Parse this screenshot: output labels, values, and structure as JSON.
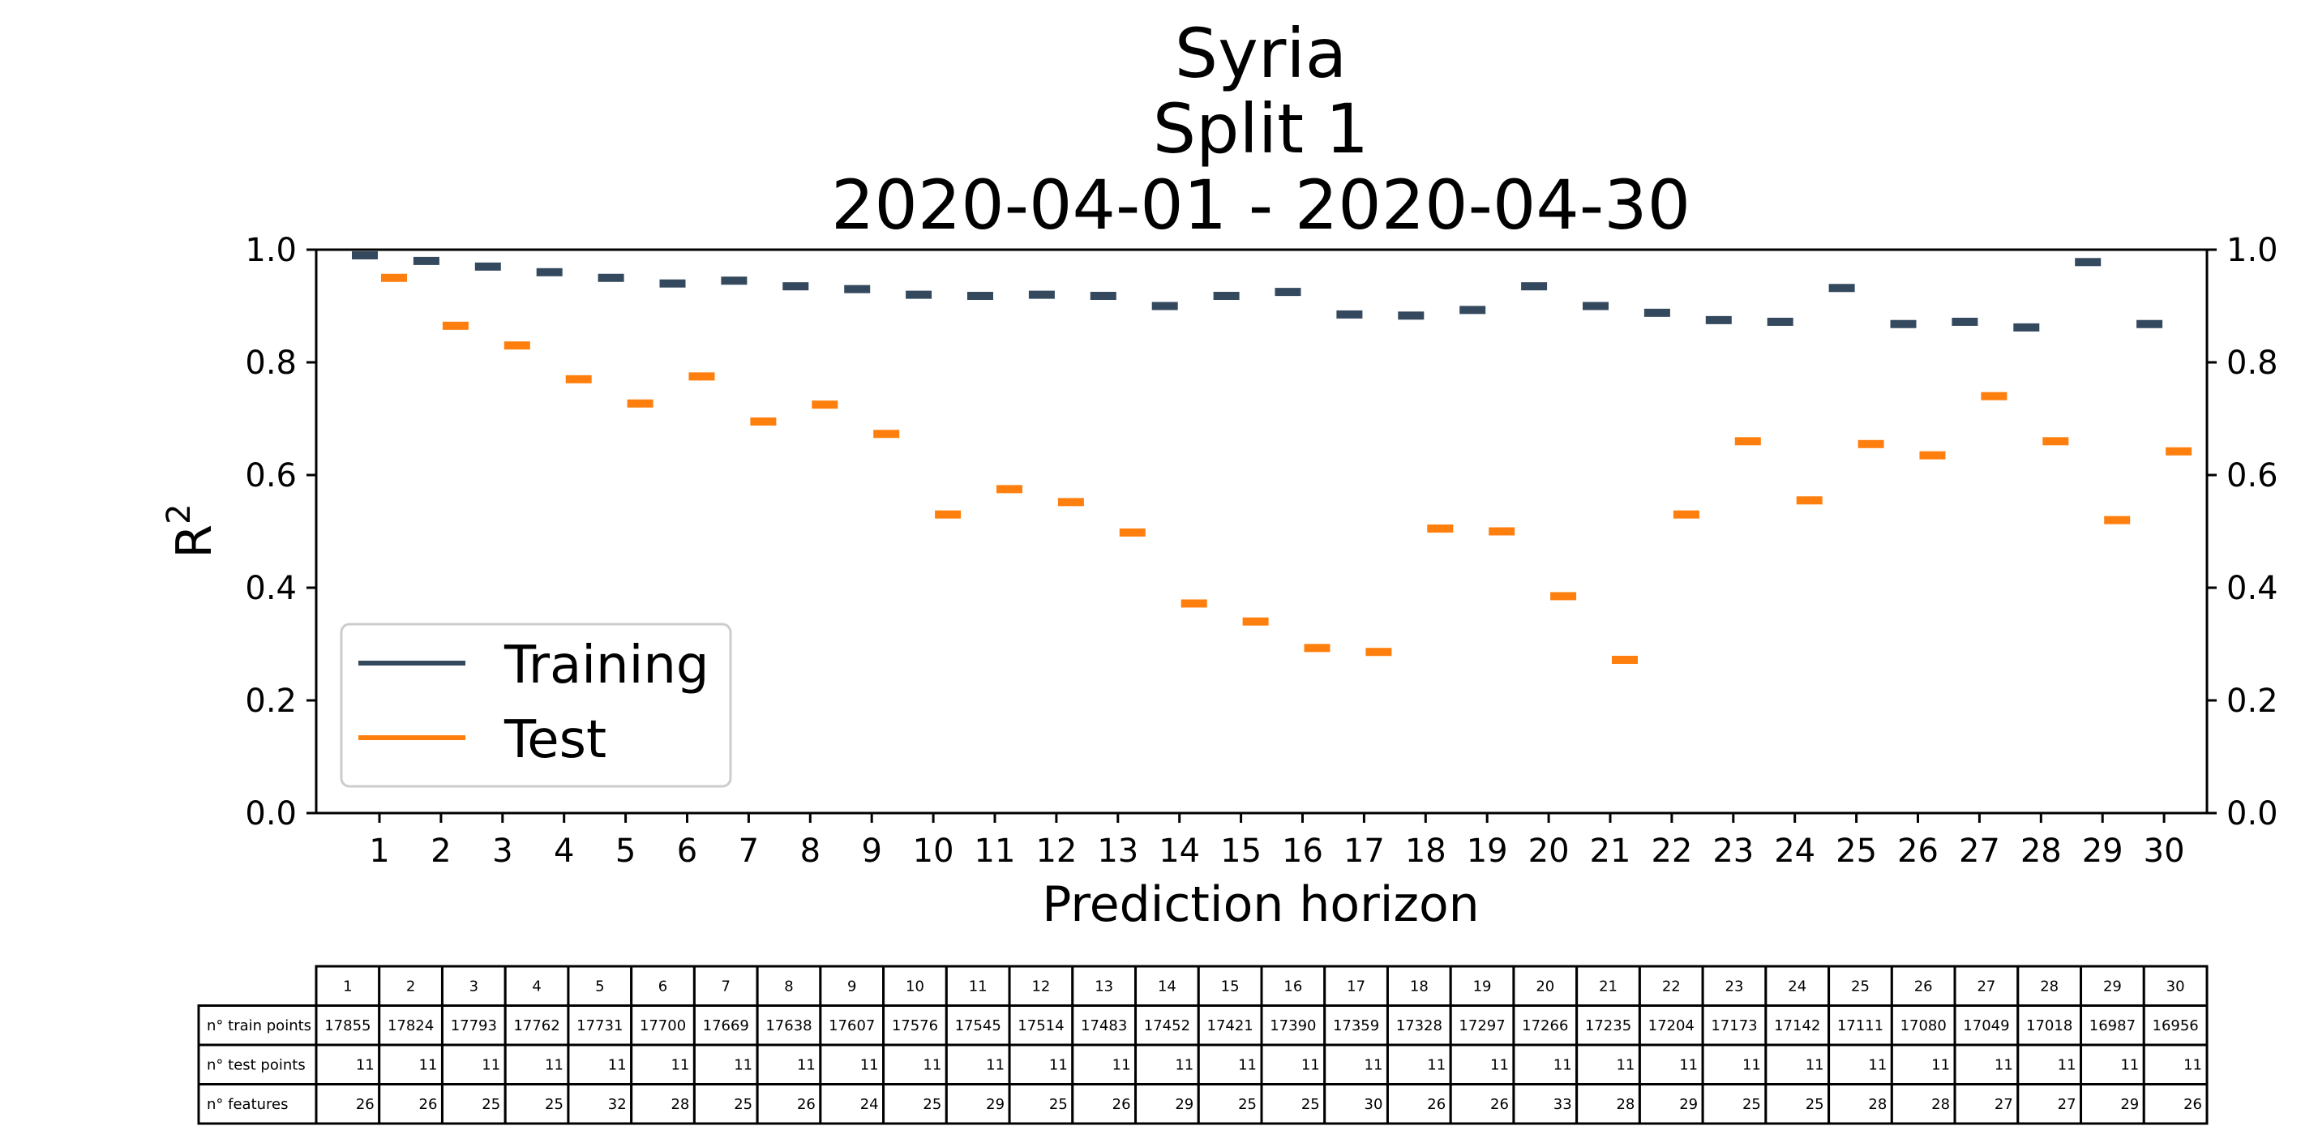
{
  "chart_data": {
    "type": "scatter",
    "title_lines": [
      "Syria",
      "Split 1",
      "2020-04-01 - 2020-04-30"
    ],
    "xlabel": "Prediction horizon",
    "ylabel": "R",
    "ylabel_sup": "2",
    "ylim": [
      0,
      1
    ],
    "yticks": [
      "0.0",
      "0.2",
      "0.4",
      "0.6",
      "0.8",
      "1.0"
    ],
    "x": [
      1,
      2,
      3,
      4,
      5,
      6,
      7,
      8,
      9,
      10,
      11,
      12,
      13,
      14,
      15,
      16,
      17,
      18,
      19,
      20,
      21,
      22,
      23,
      24,
      25,
      26,
      27,
      28,
      29,
      30
    ],
    "grid": false,
    "legend_position": "lower-left",
    "series": [
      {
        "name": "Training",
        "color": "#34495e",
        "values": [
          0.99,
          0.98,
          0.97,
          0.96,
          0.95,
          0.94,
          0.945,
          0.935,
          0.93,
          0.92,
          0.918,
          0.92,
          0.918,
          0.9,
          0.918,
          0.925,
          0.885,
          0.883,
          0.893,
          0.935,
          0.9,
          0.888,
          0.875,
          0.872,
          0.932,
          0.868,
          0.872,
          0.862,
          0.978,
          0.868
        ]
      },
      {
        "name": "Test",
        "color": "#ff7f0e",
        "values": [
          0.95,
          0.865,
          0.83,
          0.77,
          0.727,
          0.775,
          0.695,
          0.725,
          0.673,
          0.53,
          0.575,
          0.552,
          0.498,
          0.372,
          0.34,
          0.293,
          0.286,
          0.505,
          0.5,
          0.385,
          0.272,
          0.53,
          0.66,
          0.555,
          0.655,
          0.635,
          0.74,
          0.66,
          0.52,
          0.642
        ]
      }
    ],
    "table": {
      "header": [
        "1",
        "2",
        "3",
        "4",
        "5",
        "6",
        "7",
        "8",
        "9",
        "10",
        "11",
        "12",
        "13",
        "14",
        "15",
        "16",
        "17",
        "18",
        "19",
        "20",
        "21",
        "22",
        "23",
        "24",
        "25",
        "26",
        "27",
        "28",
        "29",
        "30"
      ],
      "rows": [
        {
          "label": "n° train points",
          "values": [
            "17855",
            "17824",
            "17793",
            "17762",
            "17731",
            "17700",
            "17669",
            "17638",
            "17607",
            "17576",
            "17545",
            "17514",
            "17483",
            "17452",
            "17421",
            "17390",
            "17359",
            "17328",
            "17297",
            "17266",
            "17235",
            "17204",
            "17173",
            "17142",
            "17111",
            "17080",
            "17049",
            "17018",
            "16987",
            "16956"
          ]
        },
        {
          "label": "n° test points",
          "values": [
            "11",
            "11",
            "11",
            "11",
            "11",
            "11",
            "11",
            "11",
            "11",
            "11",
            "11",
            "11",
            "11",
            "11",
            "11",
            "11",
            "11",
            "11",
            "11",
            "11",
            "11",
            "11",
            "11",
            "11",
            "11",
            "11",
            "11",
            "11",
            "11",
            "11"
          ]
        },
        {
          "label": "n° features",
          "values": [
            "26",
            "26",
            "25",
            "25",
            "32",
            "28",
            "25",
            "26",
            "24",
            "25",
            "29",
            "25",
            "26",
            "29",
            "25",
            "25",
            "30",
            "26",
            "26",
            "33",
            "28",
            "29",
            "25",
            "25",
            "28",
            "28",
            "27",
            "27",
            "29",
            "26"
          ]
        }
      ]
    }
  }
}
